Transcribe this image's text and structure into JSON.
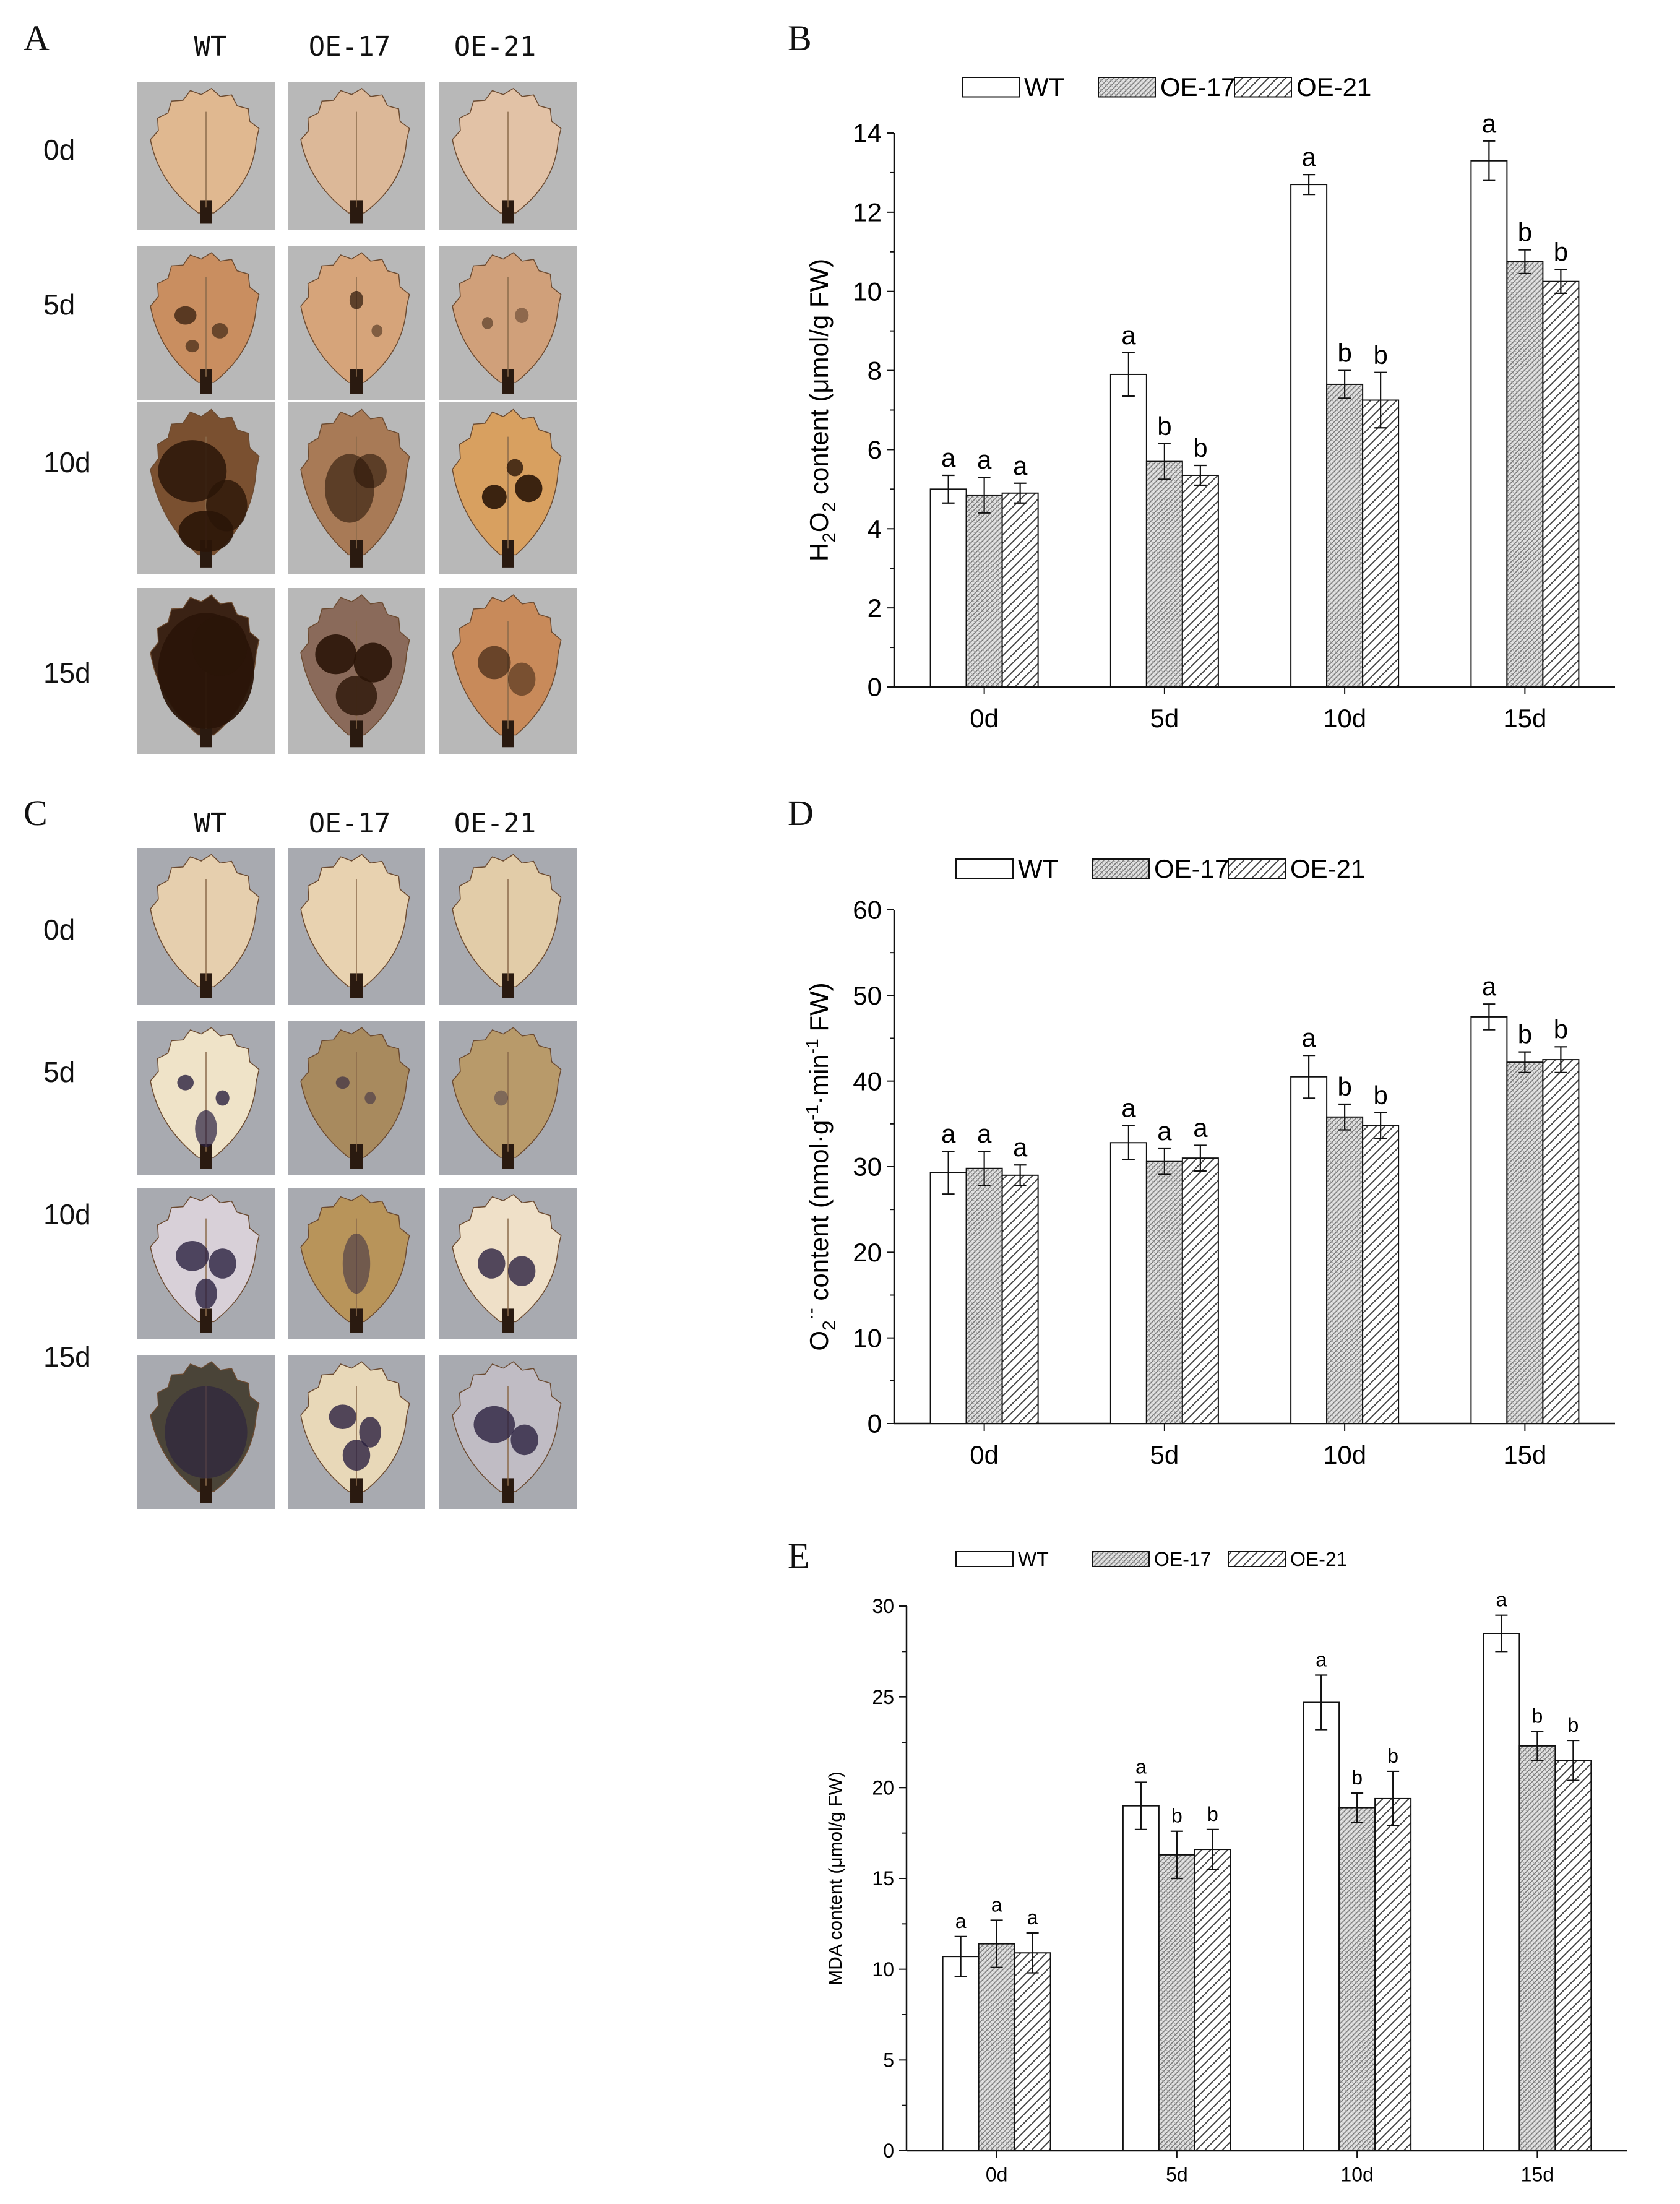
{
  "panels": {
    "A": "A",
    "B": "B",
    "C": "C",
    "D": "D",
    "E": "E"
  },
  "photos": {
    "columns": [
      "WT",
      "OE-17",
      "OE-21"
    ],
    "rows": [
      "0d",
      "5d",
      "10d",
      "15d"
    ],
    "panel_A_tone": "#c99a72",
    "panel_C_tone": "#d9c3a0"
  },
  "chart_data": [
    {
      "id": "B",
      "type": "bar",
      "title": "",
      "xlabel": "",
      "ylabel_main": "H",
      "ylabel_sub1": "2",
      "ylabel_mid": "O",
      "ylabel_sub2": "2",
      "ylabel_tail": " content (μmol/g FW)",
      "categories": [
        "0d",
        "5d",
        "10d",
        "15d"
      ],
      "ylim": [
        0,
        14
      ],
      "yticks": [
        0,
        2,
        4,
        6,
        8,
        10,
        12,
        14
      ],
      "series": [
        {
          "name": "WT",
          "values": [
            5.0,
            7.9,
            12.7,
            13.3
          ],
          "errors": [
            0.35,
            0.55,
            0.25,
            0.5
          ],
          "letters": [
            "a",
            "a",
            "a",
            "a"
          ]
        },
        {
          "name": "OE-17",
          "values": [
            4.85,
            5.7,
            7.65,
            10.75
          ],
          "errors": [
            0.45,
            0.45,
            0.35,
            0.3
          ],
          "letters": [
            "a",
            "b",
            "b",
            "b"
          ]
        },
        {
          "name": "OE-21",
          "values": [
            4.9,
            5.35,
            7.25,
            10.25
          ],
          "errors": [
            0.25,
            0.25,
            0.7,
            0.3
          ],
          "letters": [
            "a",
            "b",
            "b",
            "b"
          ]
        }
      ],
      "legend": [
        "WT",
        "OE-17",
        "OE-21"
      ]
    },
    {
      "id": "D",
      "type": "bar",
      "title": "",
      "xlabel": "",
      "ylabel_main": "O",
      "ylabel_sub1": "2",
      "ylabel_sup": "·-",
      "ylabel_tail": " content (nmol·g",
      "ylabel_sup2": "-1",
      "ylabel_tail2": "·min",
      "ylabel_sup3": "-1",
      "ylabel_tail3": " FW)",
      "categories": [
        "0d",
        "5d",
        "10d",
        "15d"
      ],
      "ylim": [
        0,
        60
      ],
      "yticks": [
        0,
        10,
        20,
        30,
        40,
        50,
        60
      ],
      "series": [
        {
          "name": "WT",
          "values": [
            29.3,
            32.8,
            40.5,
            47.5
          ],
          "errors": [
            2.5,
            2.0,
            2.5,
            1.5
          ],
          "letters": [
            "a",
            "a",
            "a",
            "a"
          ]
        },
        {
          "name": "OE-17",
          "values": [
            29.8,
            30.6,
            35.8,
            42.2
          ],
          "errors": [
            2.0,
            1.5,
            1.5,
            1.2
          ],
          "letters": [
            "a",
            "a",
            "b",
            "b"
          ]
        },
        {
          "name": "OE-21",
          "values": [
            29.0,
            31.0,
            34.8,
            42.5
          ],
          "errors": [
            1.2,
            1.5,
            1.5,
            1.5
          ],
          "letters": [
            "a",
            "a",
            "b",
            "b"
          ]
        }
      ],
      "legend": [
        "WT",
        "OE-17",
        "OE-21"
      ]
    },
    {
      "id": "E",
      "type": "bar",
      "title": "",
      "xlabel": "",
      "ylabel_main": "MDA content (μmol/g FW)",
      "categories": [
        "0d",
        "5d",
        "10d",
        "15d"
      ],
      "ylim": [
        0,
        30
      ],
      "yticks": [
        0,
        5,
        10,
        15,
        20,
        25,
        30
      ],
      "series": [
        {
          "name": "WT",
          "values": [
            10.7,
            19.0,
            24.7,
            28.5
          ],
          "errors": [
            1.1,
            1.3,
            1.5,
            1.0
          ],
          "letters": [
            "a",
            "a",
            "a",
            "a"
          ]
        },
        {
          "name": "OE-17",
          "values": [
            11.4,
            16.3,
            18.9,
            22.3
          ],
          "errors": [
            1.3,
            1.3,
            0.8,
            0.8
          ],
          "letters": [
            "a",
            "b",
            "b",
            "b"
          ]
        },
        {
          "name": "OE-21",
          "values": [
            10.9,
            16.6,
            19.4,
            21.5
          ],
          "errors": [
            1.1,
            1.1,
            1.5,
            1.1
          ],
          "letters": [
            "a",
            "b",
            "b",
            "b"
          ]
        }
      ],
      "legend": [
        "WT",
        "OE-17",
        "OE-21"
      ]
    }
  ]
}
